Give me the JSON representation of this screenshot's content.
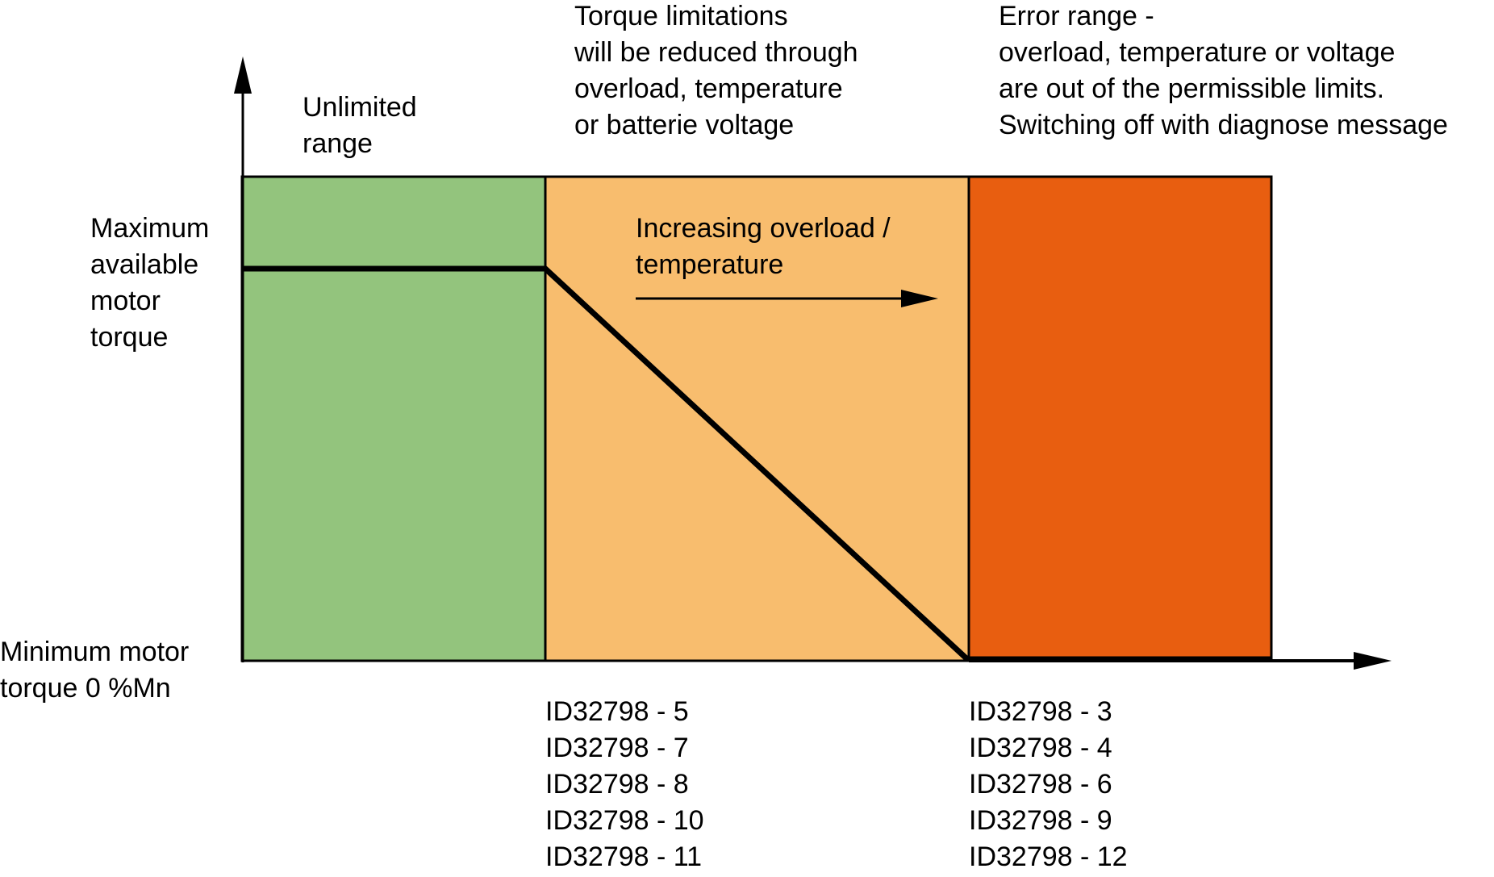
{
  "regions": [
    {
      "id": "unlimited",
      "color": "#93c47d",
      "caption": [
        "Unlimited",
        "range"
      ],
      "codes": []
    },
    {
      "id": "limited",
      "color": "#f8bd6e",
      "caption": [
        "Torque limitations",
        "will be reduced through",
        "overload, temperature",
        "or batterie voltage"
      ],
      "codes": [
        "ID32798 - 5",
        "ID32798 - 7",
        "ID32798 - 8",
        "ID32798 - 10",
        "ID32798 - 11"
      ]
    },
    {
      "id": "error",
      "color": "#e85e10",
      "caption": [
        "Error range -",
        "overload, temperature or voltage",
        "are out of the permissible limits.",
        "Switching off with diagnose message"
      ],
      "codes": [
        "ID32798 - 3",
        "ID32798 - 4",
        "ID32798 - 6",
        "ID32798 - 9",
        "ID32798 - 12"
      ]
    }
  ],
  "y_axis": {
    "max_label": [
      "Maximum",
      "available",
      "motor",
      "torque"
    ],
    "min_label": [
      "Minimum motor",
      "torque 0 %Mn"
    ]
  },
  "trend_arrow": {
    "label": [
      "Increasing overload /",
      "temperature"
    ]
  },
  "colors": {
    "unlimited": "#93c47d",
    "limited": "#f8bd6e",
    "error": "#e85e10",
    "line": "#000000"
  }
}
